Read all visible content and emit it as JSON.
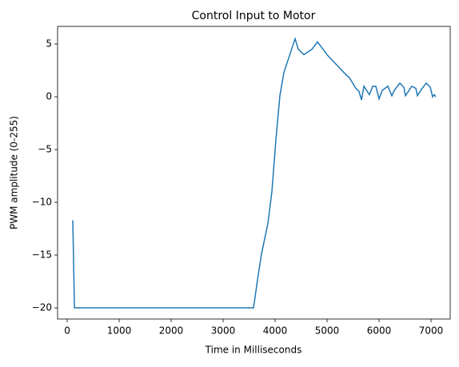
{
  "chart_data": {
    "type": "line",
    "title": "Control Input to Motor",
    "x_label": "Time in Milliseconds",
    "y_label": "PWM amplitude (0-255)",
    "x": [
      108,
      140,
      3585,
      3662,
      3738,
      3862,
      3938,
      4015,
      4092,
      4169,
      4277,
      4385,
      4446,
      4554,
      4708,
      4815,
      4908,
      5015,
      5169,
      5323,
      5431,
      5554,
      5615,
      5662,
      5708,
      5815,
      5877,
      5938,
      6000,
      6062,
      6169,
      6246,
      6292,
      6400,
      6477,
      6508,
      6631,
      6708,
      6738,
      6815,
      6908,
      6985,
      7031,
      7062,
      7092
    ],
    "series": [
      {
        "name": "PWM",
        "color": "#1f77b4",
        "values": [
          -11.7,
          -20,
          -20,
          -17.35,
          -14.9,
          -12.0,
          -9.0,
          -4.1,
          0.1,
          2.3,
          3.9,
          5.5,
          4.5,
          4.0,
          4.5,
          5.2,
          4.6,
          3.9,
          3.1,
          2.3,
          1.8,
          0.8,
          0.5,
          -0.3,
          1.0,
          0.2,
          1.0,
          1.0,
          -0.2,
          0.6,
          1.0,
          0.1,
          0.6,
          1.3,
          0.9,
          0.1,
          1.0,
          0.8,
          0.1,
          0.7,
          1.3,
          0.9,
          0.0,
          0.2,
          0.0
        ]
      }
    ],
    "xlim": [
      -185,
      7369
    ],
    "ylim": [
      -21.06,
      6.67
    ],
    "xticks": [
      0,
      1000,
      2000,
      3000,
      4000,
      5000,
      6000,
      7000
    ],
    "yticks": [
      {
        "value": -20,
        "label": "−20"
      },
      {
        "value": -15,
        "label": "−15"
      },
      {
        "value": -10,
        "label": "−10"
      },
      {
        "value": -5,
        "label": "−5"
      },
      0,
      5
    ],
    "grid": false
  }
}
